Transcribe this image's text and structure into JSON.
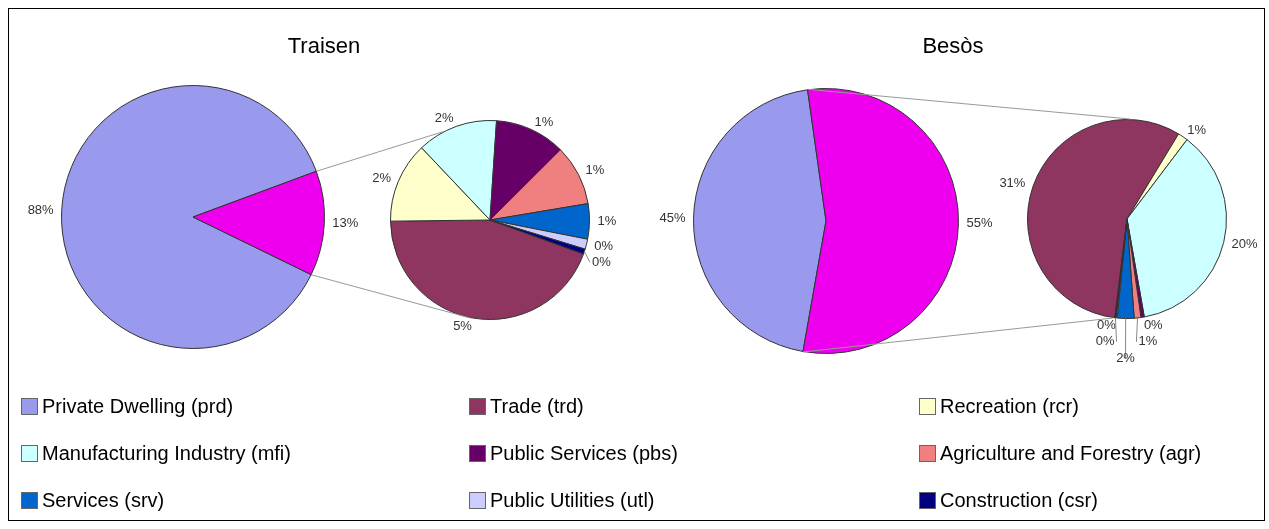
{
  "chart_data": [
    {
      "type": "pie",
      "title": "Traisen",
      "categories": [
        "Private Dwelling (prd)",
        null
      ],
      "values": [
        88,
        13
      ],
      "value_labels": [
        "88%",
        "13%"
      ],
      "colors": [
        "#9999ee",
        "#ee00ee"
      ],
      "legend": "bottom"
    },
    {
      "type": "pie",
      "categories": [
        "Trade (trd)",
        "Recreation (rcr)",
        "Manufacturing Industry (mfi)",
        "Public Services (pbs)",
        "Agriculture and Forestry (agr)",
        "Services (srv)",
        "Public Utilities (utl)",
        "Construction (csr)"
      ],
      "values": [
        5.4,
        1.6,
        1.6,
        1.4,
        1.2,
        0.7,
        0.2,
        0.1
      ],
      "value_labels": [
        "5%",
        "2%",
        "2%",
        "1%",
        "1%",
        "1%",
        "0%",
        "0%"
      ],
      "colors": [
        "#8e3560",
        "#ffffcc",
        "#ccffff",
        "#660066",
        "#f08080",
        "#0066cc",
        "#ccccff",
        "#000080"
      ],
      "legend": "bottom"
    },
    {
      "type": "pie",
      "title": "Besòs",
      "categories": [
        null,
        null
      ],
      "values": [
        45,
        55
      ],
      "value_labels": [
        "45%",
        "55%"
      ],
      "colors": [
        "#9999ee",
        "#ee00ee"
      ]
    },
    {
      "type": "pie",
      "categories": [
        null,
        null,
        null,
        null,
        null,
        null,
        null,
        null
      ],
      "values": [
        31.2,
        0.9,
        20.3,
        0.3,
        0.6,
        1.5,
        0.1,
        0.1
      ],
      "value_labels": [
        "31%",
        "1%",
        "20%",
        "0%",
        "1%",
        "2%",
        "0%",
        "0%"
      ],
      "colors": [
        "#8e3560",
        "#ffffcc",
        "#ccffff",
        "#660066",
        "#f08080",
        "#0066cc",
        "#ccccff",
        "#000080"
      ]
    }
  ]
}
